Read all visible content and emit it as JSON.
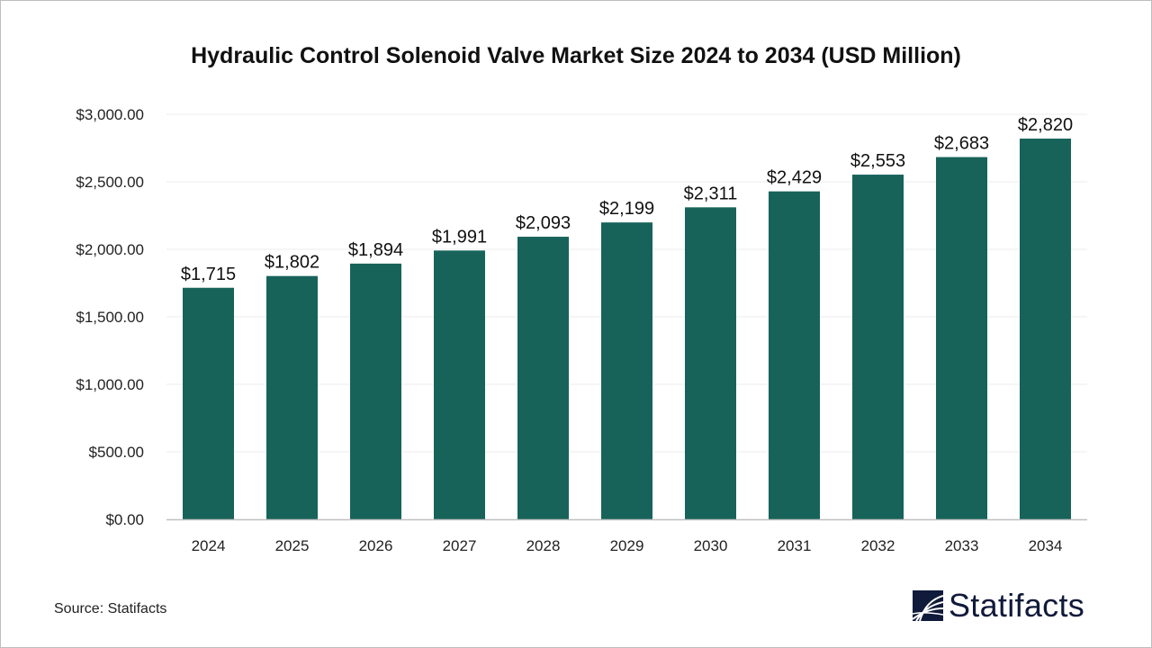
{
  "chart_data": {
    "type": "bar",
    "title": "Hydraulic Control Solenoid Valve Market Size 2024 to 2034 (USD Million)",
    "categories": [
      "2024",
      "2025",
      "2026",
      "2027",
      "2028",
      "2029",
      "2030",
      "2031",
      "2032",
      "2033",
      "2034"
    ],
    "values": [
      1715,
      1802,
      1894,
      1991,
      2093,
      2199,
      2311,
      2429,
      2553,
      2683,
      2820
    ],
    "data_labels": [
      "$1,715",
      "$1,802",
      "$1,894",
      "$1,991",
      "$2,093",
      "$2,199",
      "$2,311",
      "$2,429",
      "$2,553",
      "$2,683",
      "$2,820"
    ],
    "yticks": [
      0,
      500,
      1000,
      1500,
      2000,
      2500,
      3000
    ],
    "ytick_labels": [
      "$0.00",
      "$500.00",
      "$1,000.00",
      "$1,500.00",
      "$2,000.00",
      "$2,500.00",
      "$3,000.00"
    ],
    "ylim": [
      0,
      3000
    ],
    "xlabel": "",
    "ylabel": "",
    "grid": true,
    "bar_color": "#17635a"
  },
  "source": "Source: Statifacts",
  "logo_text": "Statifacts"
}
